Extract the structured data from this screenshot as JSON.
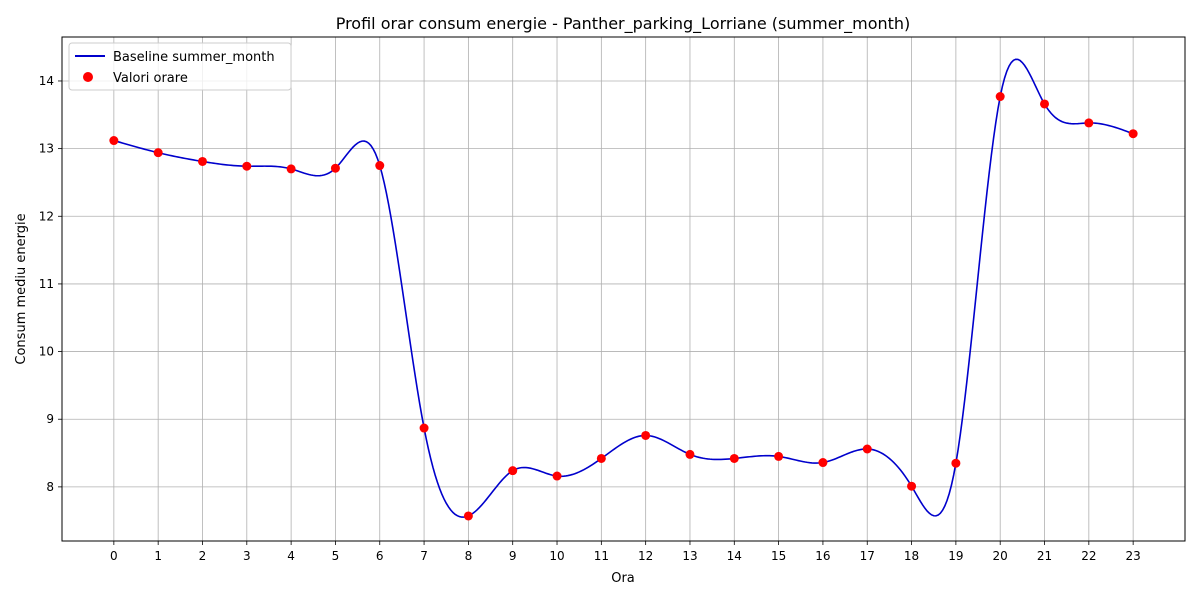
{
  "chart_data": {
    "type": "line",
    "title": "Profil orar consum energie - Panther_parking_Lorriane (summer_month)",
    "xlabel": "Ora",
    "ylabel": "Consum mediu energie",
    "x": [
      0,
      1,
      2,
      3,
      4,
      5,
      6,
      7,
      8,
      9,
      10,
      11,
      12,
      13,
      14,
      15,
      16,
      17,
      18,
      19,
      20,
      21,
      22,
      23
    ],
    "xlim": [
      -1.17,
      24.17
    ],
    "ylim": [
      7.2,
      14.65
    ],
    "xticks": [
      "0",
      "1",
      "2",
      "3",
      "4",
      "5",
      "6",
      "7",
      "8",
      "9",
      "10",
      "11",
      "12",
      "13",
      "14",
      "15",
      "16",
      "17",
      "18",
      "19",
      "20",
      "21",
      "22",
      "23"
    ],
    "yticks": [
      "8",
      "9",
      "10",
      "11",
      "12",
      "13",
      "14"
    ],
    "grid": true,
    "legend_position": "top-left",
    "series": [
      {
        "name": "Baseline summer_month",
        "kind": "line",
        "color": "#0000cc",
        "values": [
          13.12,
          12.94,
          12.81,
          12.74,
          12.7,
          12.71,
          12.75,
          8.87,
          7.57,
          8.24,
          8.16,
          8.42,
          8.76,
          8.48,
          8.42,
          8.45,
          8.36,
          8.56,
          8.01,
          8.35,
          13.77,
          13.66,
          13.38,
          13.22
        ]
      },
      {
        "name": "Valori orare",
        "kind": "scatter",
        "color": "#ff0000",
        "values": [
          13.12,
          12.94,
          12.81,
          12.74,
          12.7,
          12.71,
          12.75,
          8.87,
          7.57,
          8.24,
          8.16,
          8.42,
          8.76,
          8.48,
          8.42,
          8.45,
          8.36,
          8.56,
          8.01,
          8.35,
          13.77,
          13.66,
          13.38,
          13.22
        ]
      }
    ]
  }
}
